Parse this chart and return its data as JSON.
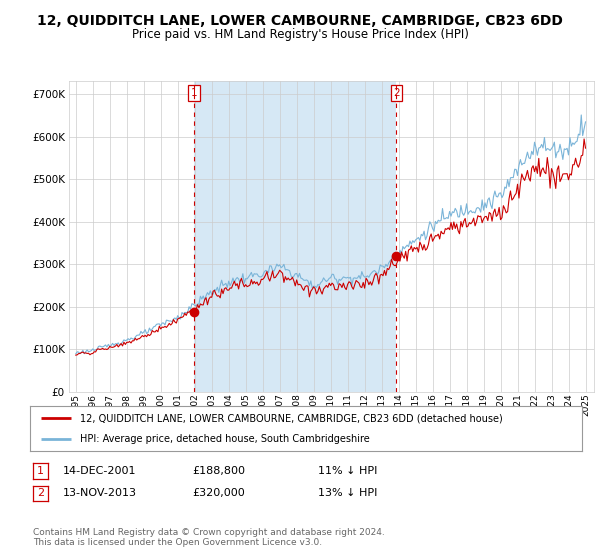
{
  "title": "12, QUIDDITCH LANE, LOWER CAMBOURNE, CAMBRIDGE, CB23 6DD",
  "subtitle": "Price paid vs. HM Land Registry's House Price Index (HPI)",
  "title_fontsize": 10,
  "subtitle_fontsize": 8.5,
  "bg_color": "#ffffff",
  "plot_bg_color": "#ffffff",
  "grid_color": "#cccccc",
  "hpi_color": "#7ab4d8",
  "price_color": "#cc0000",
  "shade_color": "#d6e8f5",
  "vline_color": "#cc0000",
  "ylim": [
    0,
    730000
  ],
  "yticks": [
    0,
    100000,
    200000,
    300000,
    400000,
    500000,
    600000,
    700000
  ],
  "year_start": 1995,
  "year_end": 2025,
  "sale1_year": 2001.958,
  "sale1_price": 188800,
  "sale2_year": 2013.875,
  "sale2_price": 320000,
  "legend_entries": [
    "12, QUIDDITCH LANE, LOWER CAMBOURNE, CAMBRIDGE, CB23 6DD (detached house)",
    "HPI: Average price, detached house, South Cambridgeshire"
  ],
  "table_rows": [
    {
      "num": "1",
      "date": "14-DEC-2001",
      "price": "£188,800",
      "hpi": "11% ↓ HPI"
    },
    {
      "num": "2",
      "date": "13-NOV-2013",
      "price": "£320,000",
      "hpi": "13% ↓ HPI"
    }
  ],
  "footnote": "Contains HM Land Registry data © Crown copyright and database right 2024.\nThis data is licensed under the Open Government Licence v3.0."
}
